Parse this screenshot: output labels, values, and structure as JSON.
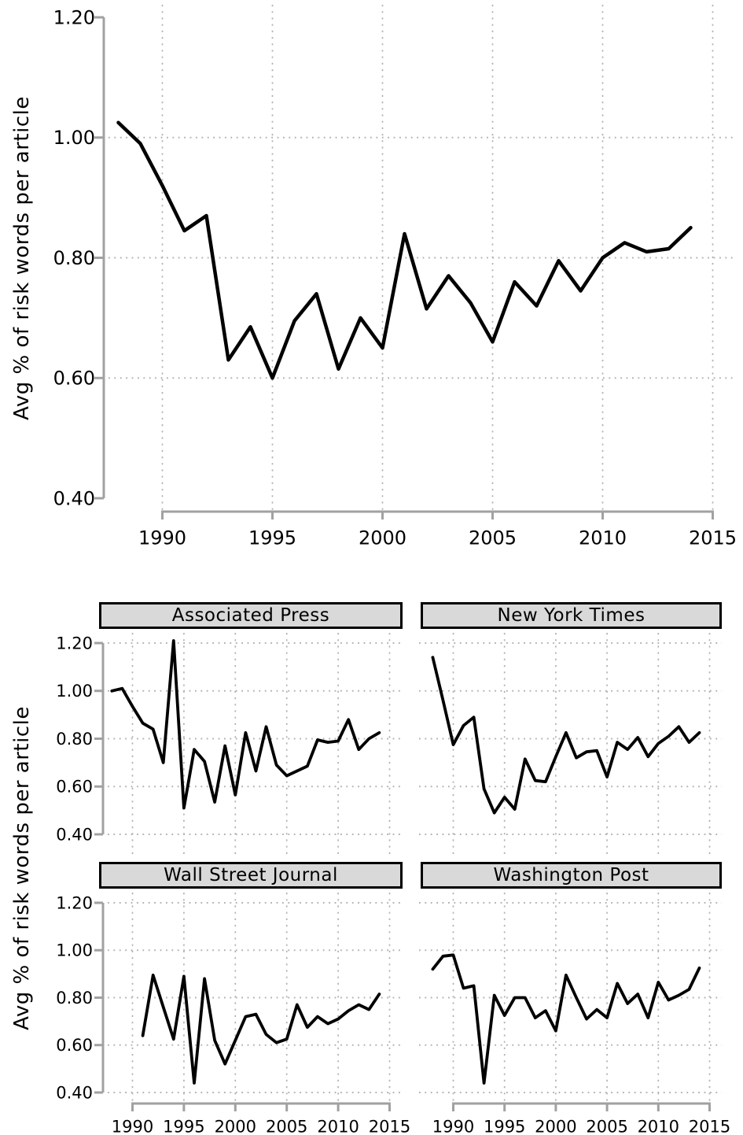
{
  "figure": {
    "ylabel_top": "Avg % of risk words per article",
    "ylabel_bottom": "Avg % of risk words per article"
  },
  "colors": {
    "line": "#000000",
    "axis": "#a1a1a1",
    "grid": "#b2b2b2",
    "tick_label": "#000000",
    "panel_header_bg": "#d9d9d9",
    "panel_header_border": "#000000",
    "background": "#ffffff"
  },
  "chart_data": [
    {
      "id": "overall",
      "type": "line",
      "title": "",
      "ylabel": "Avg % of risk words per article",
      "xlabel": "",
      "ylim": [
        0.4,
        1.2
      ],
      "x_axis_range": [
        1990,
        2015
      ],
      "yticks": {
        "values": [
          1.2,
          1.0,
          0.8,
          0.6,
          0.4
        ],
        "labels": [
          "1.20",
          "1.00",
          "0.80",
          "0.60",
          "0.40"
        ]
      },
      "xticks": {
        "values": [
          1990,
          1995,
          2000,
          2005,
          2010,
          2015
        ],
        "labels": [
          "1990",
          "1995",
          "2000",
          "2005",
          "2010",
          "2015"
        ]
      },
      "ygrid_values": [
        1.0,
        0.8,
        0.6
      ],
      "grid": "dotted",
      "legend": "none",
      "x": [
        1988,
        1989,
        1990,
        1991,
        1992,
        1993,
        1994,
        1995,
        1996,
        1997,
        1998,
        1999,
        2000,
        2001,
        2002,
        2003,
        2004,
        2005,
        2006,
        2007,
        2008,
        2009,
        2010,
        2011,
        2012,
        2013,
        2014
      ],
      "values": [
        1.025,
        0.99,
        0.92,
        0.845,
        0.87,
        0.63,
        0.685,
        0.6,
        0.695,
        0.74,
        0.615,
        0.7,
        0.65,
        0.84,
        0.715,
        0.77,
        0.725,
        0.66,
        0.76,
        0.72,
        0.795,
        0.745,
        0.8,
        0.825,
        0.81,
        0.815,
        0.85
      ]
    },
    {
      "id": "ap",
      "type": "line",
      "title": "Associated Press",
      "ylim": [
        0.4,
        1.2
      ],
      "x_axis_range": [
        1990,
        2015
      ],
      "yticks": {
        "values": [
          1.2,
          1.0,
          0.8,
          0.6,
          0.4
        ],
        "labels": [
          "1.20",
          "1.00",
          "0.80",
          "0.60",
          "0.40"
        ]
      },
      "xticks": {
        "values": [
          1990,
          1995,
          2000,
          2005,
          2010,
          2015
        ],
        "labels": [
          "1990",
          "1995",
          "2000",
          "2005",
          "2010",
          "2015"
        ]
      },
      "ygrid_values": [
        1.2,
        1.0,
        0.8,
        0.6,
        0.4
      ],
      "grid": "dotted",
      "legend": "none",
      "x": [
        1988,
        1989,
        1990,
        1991,
        1992,
        1993,
        1994,
        1995,
        1996,
        1997,
        1998,
        1999,
        2000,
        2001,
        2002,
        2003,
        2004,
        2005,
        2006,
        2007,
        2008,
        2009,
        2010,
        2011,
        2012,
        2013,
        2014
      ],
      "values": [
        1.0,
        1.01,
        0.935,
        0.865,
        0.84,
        0.7,
        1.21,
        0.51,
        0.755,
        0.705,
        0.535,
        0.77,
        0.565,
        0.825,
        0.665,
        0.85,
        0.69,
        0.645,
        0.665,
        0.685,
        0.795,
        0.785,
        0.79,
        0.88,
        0.755,
        0.8,
        0.825
      ]
    },
    {
      "id": "nyt",
      "type": "line",
      "title": "New York Times",
      "ylim": [
        0.4,
        1.2
      ],
      "x_axis_range": [
        1990,
        2015
      ],
      "yticks": {
        "values": [
          1.2,
          1.0,
          0.8,
          0.6,
          0.4
        ],
        "labels": [
          "1.20",
          "1.00",
          "0.80",
          "0.60",
          "0.40"
        ]
      },
      "xticks": {
        "values": [
          1990,
          1995,
          2000,
          2005,
          2010,
          2015
        ],
        "labels": [
          "1990",
          "1995",
          "2000",
          "2005",
          "2010",
          "2015"
        ]
      },
      "ygrid_values": [
        1.2,
        1.0,
        0.8,
        0.6,
        0.4
      ],
      "grid": "dotted",
      "legend": "none",
      "x": [
        1988,
        1989,
        1990,
        1991,
        1992,
        1993,
        1994,
        1995,
        1996,
        1997,
        1998,
        1999,
        2000,
        2001,
        2002,
        2003,
        2004,
        2005,
        2006,
        2007,
        2008,
        2009,
        2010,
        2011,
        2012,
        2013,
        2014
      ],
      "values": [
        1.14,
        0.96,
        0.775,
        0.855,
        0.89,
        0.59,
        0.49,
        0.555,
        0.505,
        0.715,
        0.625,
        0.62,
        0.725,
        0.825,
        0.72,
        0.745,
        0.75,
        0.64,
        0.785,
        0.755,
        0.805,
        0.725,
        0.78,
        0.81,
        0.85,
        0.785,
        0.825
      ]
    },
    {
      "id": "wsj",
      "type": "line",
      "title": "Wall Street Journal",
      "ylim": [
        0.4,
        1.2
      ],
      "x_axis_range": [
        1990,
        2015
      ],
      "yticks": {
        "values": [
          1.2,
          1.0,
          0.8,
          0.6,
          0.4
        ],
        "labels": [
          "1.20",
          "1.00",
          "0.80",
          "0.60",
          "0.40"
        ]
      },
      "xticks": {
        "values": [
          1990,
          1995,
          2000,
          2005,
          2010,
          2015
        ],
        "labels": [
          "1990",
          "1995",
          "2000",
          "2005",
          "2010",
          "2015"
        ]
      },
      "ygrid_values": [
        1.2,
        1.0,
        0.8,
        0.6,
        0.4
      ],
      "grid": "dotted",
      "legend": "none",
      "x": [
        1991,
        1992,
        1993,
        1994,
        1995,
        1996,
        1997,
        1998,
        1999,
        2000,
        2001,
        2002,
        2003,
        2004,
        2005,
        2006,
        2007,
        2008,
        2009,
        2010,
        2011,
        2012,
        2013,
        2014
      ],
      "values": [
        0.64,
        0.895,
        0.76,
        0.625,
        0.89,
        0.44,
        0.88,
        0.62,
        0.52,
        0.62,
        0.72,
        0.73,
        0.645,
        0.61,
        0.625,
        0.77,
        0.675,
        0.72,
        0.69,
        0.71,
        0.745,
        0.77,
        0.75,
        0.815
      ]
    },
    {
      "id": "wapo",
      "type": "line",
      "title": "Washington Post",
      "ylim": [
        0.4,
        1.2
      ],
      "x_axis_range": [
        1990,
        2015
      ],
      "yticks": {
        "values": [
          1.2,
          1.0,
          0.8,
          0.6,
          0.4
        ],
        "labels": [
          "1.20",
          "1.00",
          "0.80",
          "0.60",
          "0.40"
        ]
      },
      "xticks": {
        "values": [
          1990,
          1995,
          2000,
          2005,
          2010,
          2015
        ],
        "labels": [
          "1990",
          "1995",
          "2000",
          "2005",
          "2010",
          "2015"
        ]
      },
      "ygrid_values": [
        1.2,
        1.0,
        0.8,
        0.6,
        0.4
      ],
      "grid": "dotted",
      "legend": "none",
      "x": [
        1988,
        1989,
        1990,
        1991,
        1992,
        1993,
        1994,
        1995,
        1996,
        1997,
        1998,
        1999,
        2000,
        2001,
        2002,
        2003,
        2004,
        2005,
        2006,
        2007,
        2008,
        2009,
        2010,
        2011,
        2012,
        2013,
        2014
      ],
      "values": [
        0.92,
        0.975,
        0.98,
        0.84,
        0.85,
        0.44,
        0.81,
        0.725,
        0.8,
        0.8,
        0.715,
        0.745,
        0.66,
        0.895,
        0.8,
        0.71,
        0.75,
        0.715,
        0.86,
        0.775,
        0.815,
        0.715,
        0.865,
        0.79,
        0.81,
        0.835,
        0.925
      ]
    }
  ]
}
